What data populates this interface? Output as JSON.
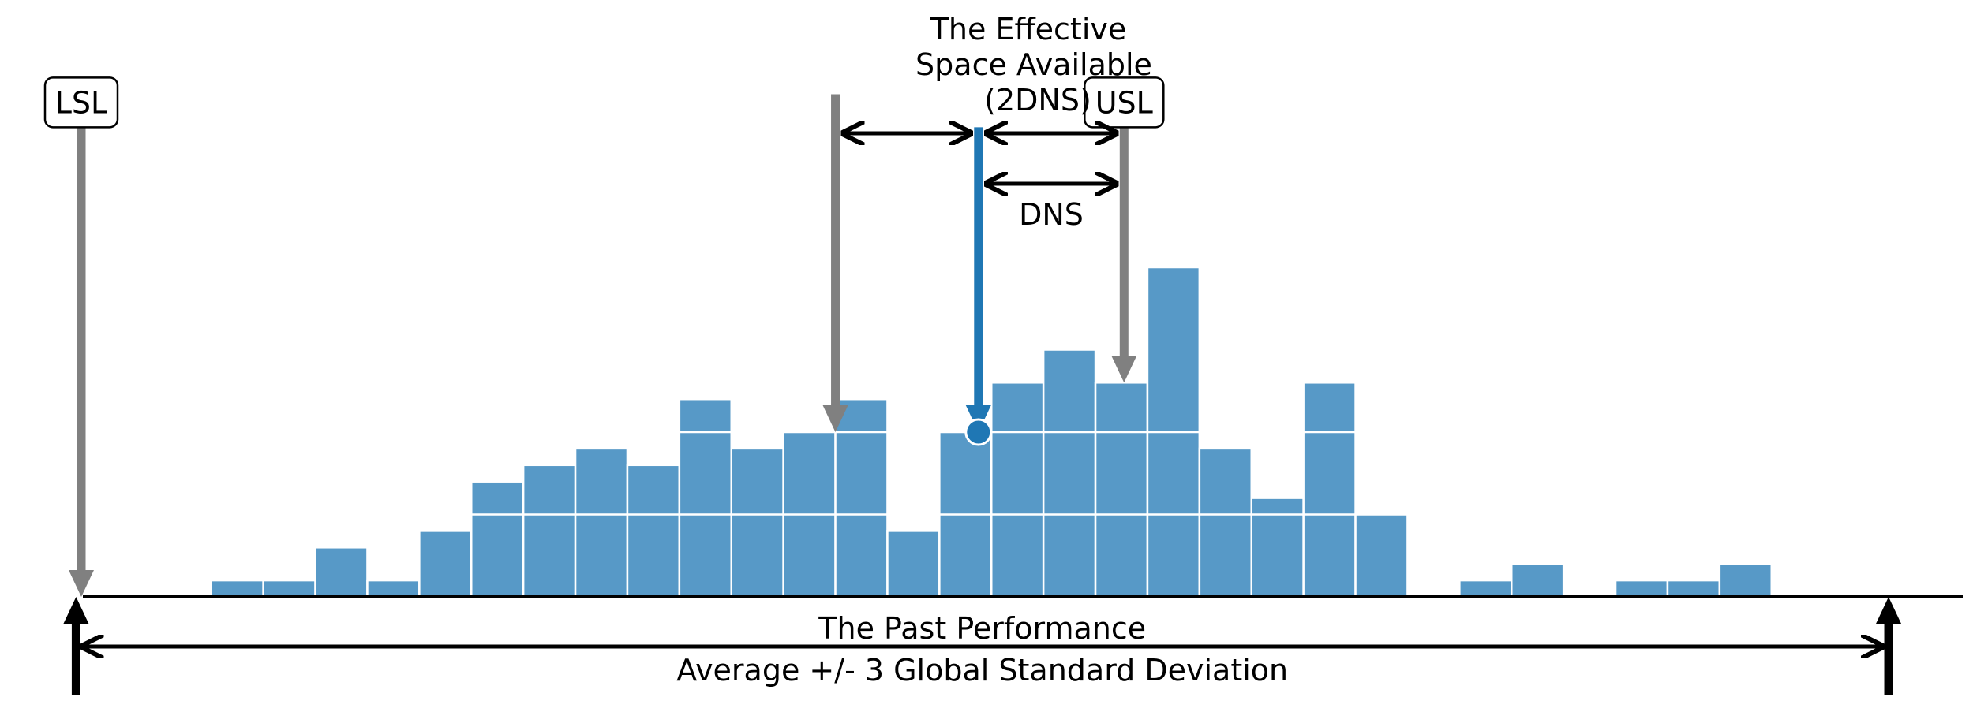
{
  "chart_data": {
    "type": "bar",
    "description_kind": "histogram",
    "bar_color": "#5799c7",
    "bar_edge_color": "#ffffff",
    "grid_lines_y": [
      5,
      10
    ],
    "bins": [
      {
        "x": 4,
        "count": 1
      },
      {
        "x": 5,
        "count": 1
      },
      {
        "x": 6,
        "count": 3
      },
      {
        "x": 7,
        "count": 1
      },
      {
        "x": 8,
        "count": 4
      },
      {
        "x": 9,
        "count": 7
      },
      {
        "x": 10,
        "count": 8
      },
      {
        "x": 11,
        "count": 9
      },
      {
        "x": 12,
        "count": 8
      },
      {
        "x": 13,
        "count": 12
      },
      {
        "x": 14,
        "count": 9
      },
      {
        "x": 15,
        "count": 10
      },
      {
        "x": 16,
        "count": 12
      },
      {
        "x": 17,
        "count": 4
      },
      {
        "x": 18,
        "count": 10
      },
      {
        "x": 19,
        "count": 13
      },
      {
        "x": 20,
        "count": 15
      },
      {
        "x": 21,
        "count": 13
      },
      {
        "x": 22,
        "count": 20
      },
      {
        "x": 23,
        "count": 9
      },
      {
        "x": 24,
        "count": 6
      },
      {
        "x": 25,
        "count": 13
      },
      {
        "x": 26,
        "count": 5
      },
      {
        "x": 28,
        "count": 1
      },
      {
        "x": 29,
        "count": 2
      },
      {
        "x": 31,
        "count": 1
      },
      {
        "x": 32,
        "count": 1
      },
      {
        "x": 33,
        "count": 2
      }
    ],
    "bin_width": 1,
    "xlim": [
      -1,
      37
    ],
    "ylim": [
      -6,
      35
    ],
    "marker": {
      "x": 18.25,
      "y": 10,
      "color": "#1f77b4"
    },
    "markers": {
      "lsl": {
        "label": "LSL",
        "x": 1,
        "y_top": 28.5,
        "y_tip": 0
      },
      "usl": {
        "label": "USL",
        "x": 21.05,
        "y_top": 28.5,
        "y_tip": 13
      },
      "left_limit": {
        "x": 15.5,
        "y_top": 30.5,
        "y_tip": 10
      },
      "target": {
        "x": 18.25,
        "y_top": 28.5,
        "y_tip": 10,
        "color": "#1f77b4"
      }
    },
    "past_performance": {
      "x_start": 0.9,
      "x_end": 35.75
    },
    "annotations": {
      "effective_space": "The Effective\nSpace Available\n(2DNS)",
      "dns": "DNS",
      "past_performance_top": "The Past Performance",
      "past_performance_bottom": "Average +/- 3 Global Standard Deviation"
    }
  }
}
